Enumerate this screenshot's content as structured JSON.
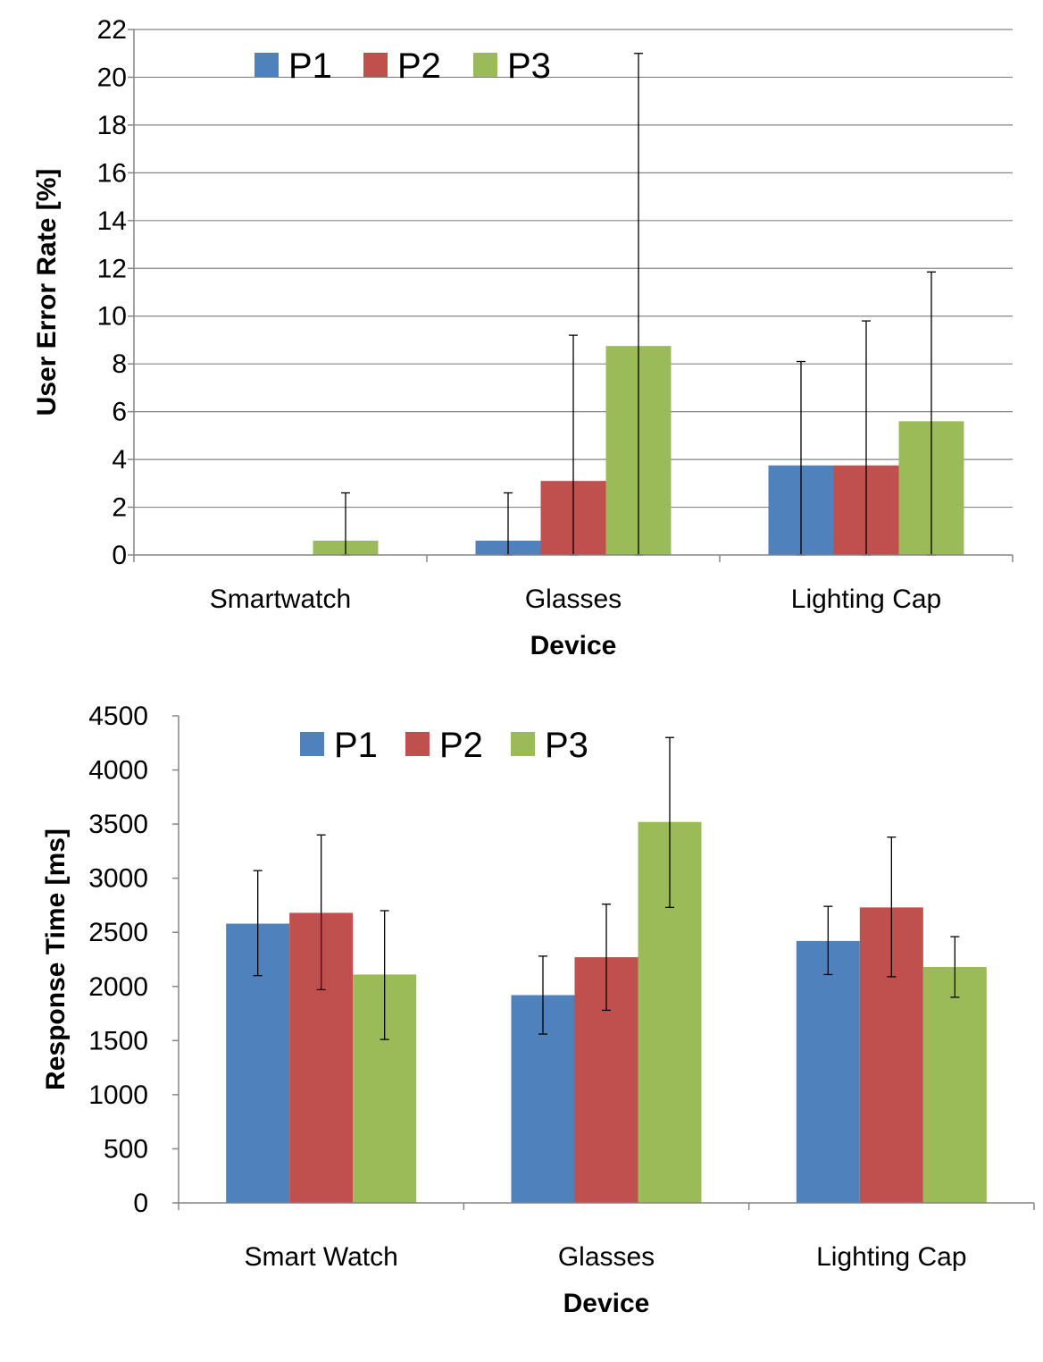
{
  "colors": {
    "P1": "#4F81BD",
    "P2": "#C0504D",
    "P3": "#9BBB59",
    "grid": "#868686",
    "axis": "#868686",
    "error_bar": "#000000"
  },
  "chart_data": [
    {
      "type": "bar",
      "title": "",
      "xlabel": "Device",
      "ylabel": "User Error Rate [%]",
      "categories": [
        "Smartwatch",
        "Glasses",
        "Lighting Cap"
      ],
      "ylim": [
        0,
        22
      ],
      "yticks": [
        0,
        2,
        4,
        6,
        8,
        10,
        12,
        14,
        16,
        18,
        20,
        22
      ],
      "grid": true,
      "legend": "top-left",
      "series": [
        {
          "name": "P1",
          "values": [
            0,
            0.6,
            3.75
          ],
          "error_upper": [
            0,
            2.6,
            8.1
          ]
        },
        {
          "name": "P2",
          "values": [
            0,
            3.1,
            3.75
          ],
          "error_upper": [
            0,
            9.2,
            9.8
          ]
        },
        {
          "name": "P3",
          "values": [
            0.6,
            8.75,
            5.6
          ],
          "error_upper": [
            2.6,
            21.0,
            11.85
          ]
        }
      ]
    },
    {
      "type": "bar",
      "title": "",
      "xlabel": "Device",
      "ylabel": "Response Time [ms]",
      "categories": [
        "Smart Watch",
        "Glasses",
        "Lighting Cap"
      ],
      "ylim": [
        0,
        4500
      ],
      "yticks": [
        0,
        500,
        1000,
        1500,
        2000,
        2500,
        3000,
        3500,
        4000,
        4500
      ],
      "grid": false,
      "legend": "top-left",
      "series": [
        {
          "name": "P1",
          "values": [
            2580,
            1920,
            2420
          ],
          "error_lower": [
            2100,
            1560,
            2110
          ],
          "error_upper": [
            3070,
            2280,
            2740
          ]
        },
        {
          "name": "P2",
          "values": [
            2680,
            2270,
            2730
          ],
          "error_lower": [
            1970,
            1780,
            2090
          ],
          "error_upper": [
            3400,
            2760,
            3380
          ]
        },
        {
          "name": "P3",
          "values": [
            2110,
            3520,
            2180
          ],
          "error_lower": [
            1510,
            2730,
            1900
          ],
          "error_upper": [
            2700,
            4300,
            2460
          ]
        }
      ]
    }
  ]
}
